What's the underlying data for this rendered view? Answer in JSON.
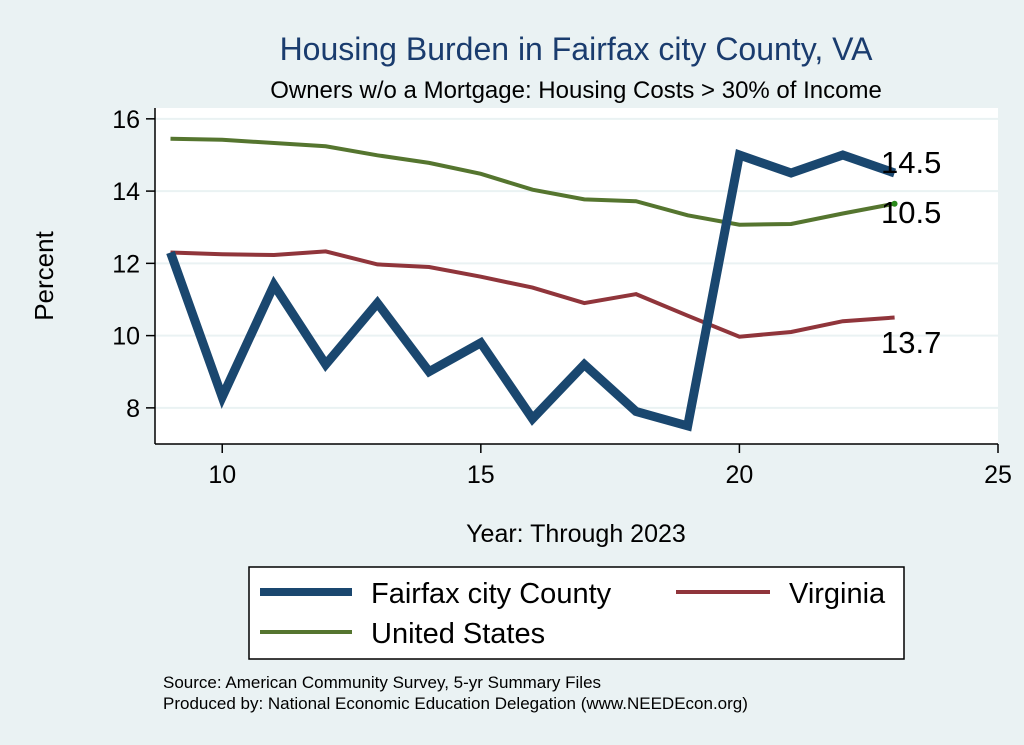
{
  "chart_data": {
    "type": "line",
    "title": "Housing Burden in Fairfax city County, VA",
    "subtitle": "Owners w/o a Mortgage: Housing Costs > 30% of Income",
    "xlabel": "Year: Through 2023",
    "ylabel": "Percent",
    "xlim": [
      8.7,
      25
    ],
    "ylim": [
      7.0,
      16.3
    ],
    "x_ticks": [
      10,
      15,
      20,
      25
    ],
    "y_ticks": [
      8,
      10,
      12,
      14,
      16
    ],
    "grid": true,
    "legend_position": "bottom",
    "x": [
      9,
      10,
      11,
      12,
      13,
      14,
      15,
      16,
      17,
      18,
      19,
      20,
      21,
      22,
      23
    ],
    "series": [
      {
        "name": "Fairfax city County",
        "color": "#1a476f",
        "values": [
          12.3,
          8.3,
          11.4,
          9.2,
          10.9,
          9.0,
          9.8,
          7.7,
          9.2,
          7.9,
          7.5,
          15.0,
          14.5,
          15.0,
          14.5
        ],
        "end_label": "14.5"
      },
      {
        "name": "Virginia",
        "color": "#90353b",
        "values": [
          12.3,
          12.25,
          12.23,
          12.33,
          11.97,
          11.9,
          11.63,
          11.33,
          10.9,
          11.15,
          10.55,
          9.97,
          10.1,
          10.4,
          10.5
        ],
        "end_label": "10.5"
      },
      {
        "name": "United States",
        "color": "#55752f",
        "values": [
          15.45,
          15.42,
          15.33,
          15.24,
          14.99,
          14.78,
          14.48,
          14.04,
          13.77,
          13.72,
          13.33,
          13.07,
          13.09,
          13.38,
          13.65
        ],
        "end_label": "13.7"
      }
    ],
    "legend": [
      {
        "label": "Fairfax city County"
      },
      {
        "label": "Virginia"
      },
      {
        "label": "United States"
      }
    ],
    "notes": [
      "Source: American Community Survey, 5-yr Summary Files",
      "Produced by: National Economic Education Delegation (www.NEEDEcon.org)"
    ]
  }
}
